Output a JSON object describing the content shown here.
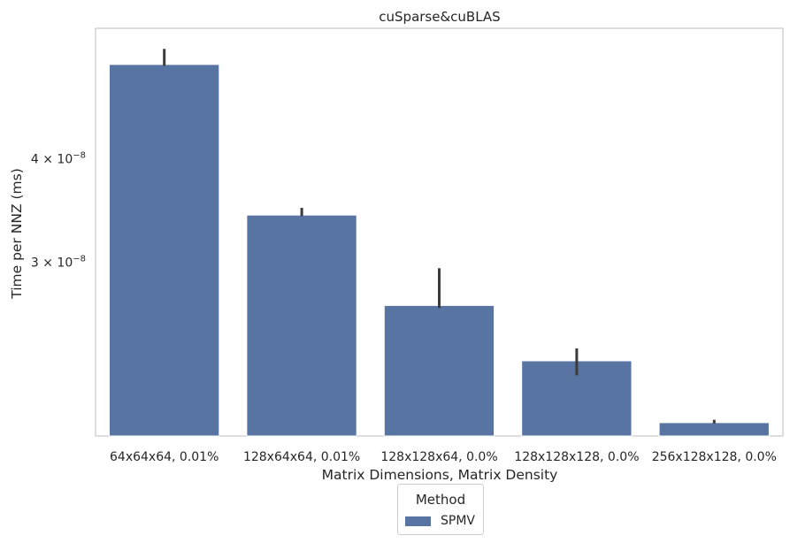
{
  "chart_data": {
    "type": "bar",
    "title": "cuSparse&cuBLAS",
    "xlabel": "Matrix Dimensions, Matrix Density",
    "ylabel": "Time per NNZ (ms)",
    "y_scale": "log",
    "ylim": [
      1.85e-08,
      5.75e-08
    ],
    "yticks": [
      {
        "value": 3e-08,
        "label_base": "3 × 10",
        "label_exp": "−8"
      },
      {
        "value": 4e-08,
        "label_base": "4 × 10",
        "label_exp": "−8"
      }
    ],
    "grid": false,
    "categories": [
      "64x64x64, 0.01%",
      "128x64x64, 0.01%",
      "128x128x64, 0.0%",
      "128x128x128, 0.0%",
      "256x128x128, 0.0%"
    ],
    "series": [
      {
        "name": "SPMV",
        "color": "#5874a3",
        "values": [
          5.2e-08,
          3.42e-08,
          2.66e-08,
          2.28e-08,
          1.92e-08
        ],
        "error_low": [
          5.18e-08,
          3.41e-08,
          2.64e-08,
          2.19e-08,
          1.915e-08
        ],
        "error_high": [
          5.43e-08,
          3.49e-08,
          2.95e-08,
          2.36e-08,
          1.935e-08
        ]
      }
    ],
    "legend": {
      "title": "Method",
      "placement": "bottom-center"
    }
  }
}
